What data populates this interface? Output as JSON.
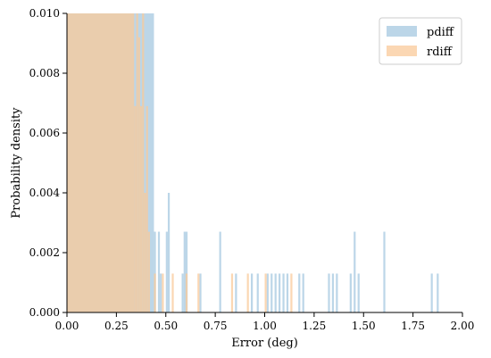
{
  "chart_data": {
    "type": "bar",
    "title": "",
    "xlabel": "Error (deg)",
    "ylabel": "Probability density",
    "xlim": [
      0.0,
      2.0
    ],
    "ylim": [
      0.0,
      0.01
    ],
    "x_ticks": [
      "0.00",
      "0.25",
      "0.50",
      "0.75",
      "1.00",
      "1.25",
      "1.50",
      "1.75",
      "2.00"
    ],
    "y_ticks": [
      "0.000",
      "0.002",
      "0.004",
      "0.006",
      "0.008",
      "0.010"
    ],
    "grid": false,
    "legend_position": "top-right",
    "series": [
      {
        "name": "pdiff",
        "color": "#a6c8e0",
        "bins": [
          {
            "x0": 0.0,
            "x1": 0.44,
            "y": 0.01
          },
          {
            "x0": 0.44,
            "x1": 0.45,
            "y": 0.0027
          },
          {
            "x0": 0.46,
            "x1": 0.47,
            "y": 0.0027
          },
          {
            "x0": 0.47,
            "x1": 0.48,
            "y": 0.0013
          },
          {
            "x0": 0.5,
            "x1": 0.51,
            "y": 0.0027
          },
          {
            "x0": 0.51,
            "x1": 0.52,
            "y": 0.004
          },
          {
            "x0": 0.58,
            "x1": 0.59,
            "y": 0.0013
          },
          {
            "x0": 0.59,
            "x1": 0.61,
            "y": 0.0027
          },
          {
            "x0": 0.67,
            "x1": 0.68,
            "y": 0.0013
          },
          {
            "x0": 0.77,
            "x1": 0.78,
            "y": 0.0027
          },
          {
            "x0": 0.85,
            "x1": 0.86,
            "y": 0.0013
          },
          {
            "x0": 0.93,
            "x1": 0.94,
            "y": 0.0013
          },
          {
            "x0": 0.96,
            "x1": 0.97,
            "y": 0.0013
          },
          {
            "x0": 1.01,
            "x1": 1.02,
            "y": 0.0013
          },
          {
            "x0": 1.03,
            "x1": 1.04,
            "y": 0.0013
          },
          {
            "x0": 1.05,
            "x1": 1.06,
            "y": 0.0013
          },
          {
            "x0": 1.07,
            "x1": 1.08,
            "y": 0.0013
          },
          {
            "x0": 1.09,
            "x1": 1.1,
            "y": 0.0013
          },
          {
            "x0": 1.11,
            "x1": 1.12,
            "y": 0.0013
          },
          {
            "x0": 1.17,
            "x1": 1.18,
            "y": 0.0013
          },
          {
            "x0": 1.19,
            "x1": 1.2,
            "y": 0.0013
          },
          {
            "x0": 1.32,
            "x1": 1.33,
            "y": 0.0013
          },
          {
            "x0": 1.34,
            "x1": 1.35,
            "y": 0.0013
          },
          {
            "x0": 1.36,
            "x1": 1.37,
            "y": 0.0013
          },
          {
            "x0": 1.43,
            "x1": 1.44,
            "y": 0.0013
          },
          {
            "x0": 1.45,
            "x1": 1.46,
            "y": 0.0027
          },
          {
            "x0": 1.47,
            "x1": 1.48,
            "y": 0.0013
          },
          {
            "x0": 1.6,
            "x1": 1.61,
            "y": 0.0027
          },
          {
            "x0": 1.84,
            "x1": 1.85,
            "y": 0.0013
          },
          {
            "x0": 1.87,
            "x1": 1.88,
            "y": 0.0013
          }
        ]
      },
      {
        "name": "rdiff",
        "color": "#f9c99a",
        "bins": [
          {
            "x0": 0.0,
            "x1": 0.34,
            "y": 0.01
          },
          {
            "x0": 0.34,
            "x1": 0.35,
            "y": 0.0069
          },
          {
            "x0": 0.35,
            "x1": 0.36,
            "y": 0.01
          },
          {
            "x0": 0.36,
            "x1": 0.37,
            "y": 0.0092
          },
          {
            "x0": 0.37,
            "x1": 0.38,
            "y": 0.0069
          },
          {
            "x0": 0.38,
            "x1": 0.39,
            "y": 0.01
          },
          {
            "x0": 0.39,
            "x1": 0.4,
            "y": 0.004
          },
          {
            "x0": 0.4,
            "x1": 0.41,
            "y": 0.0069
          },
          {
            "x0": 0.41,
            "x1": 0.42,
            "y": 0.0027
          },
          {
            "x0": 0.44,
            "x1": 0.45,
            "y": 0.0013
          },
          {
            "x0": 0.48,
            "x1": 0.49,
            "y": 0.0013
          },
          {
            "x0": 0.53,
            "x1": 0.54,
            "y": 0.0013
          },
          {
            "x0": 0.6,
            "x1": 0.61,
            "y": 0.0013
          },
          {
            "x0": 0.66,
            "x1": 0.67,
            "y": 0.0013
          },
          {
            "x0": 0.83,
            "x1": 0.84,
            "y": 0.0013
          },
          {
            "x0": 0.91,
            "x1": 0.92,
            "y": 0.0013
          },
          {
            "x0": 1.0,
            "x1": 1.01,
            "y": 0.0013
          },
          {
            "x0": 1.13,
            "x1": 1.14,
            "y": 0.0013
          }
        ]
      }
    ]
  }
}
